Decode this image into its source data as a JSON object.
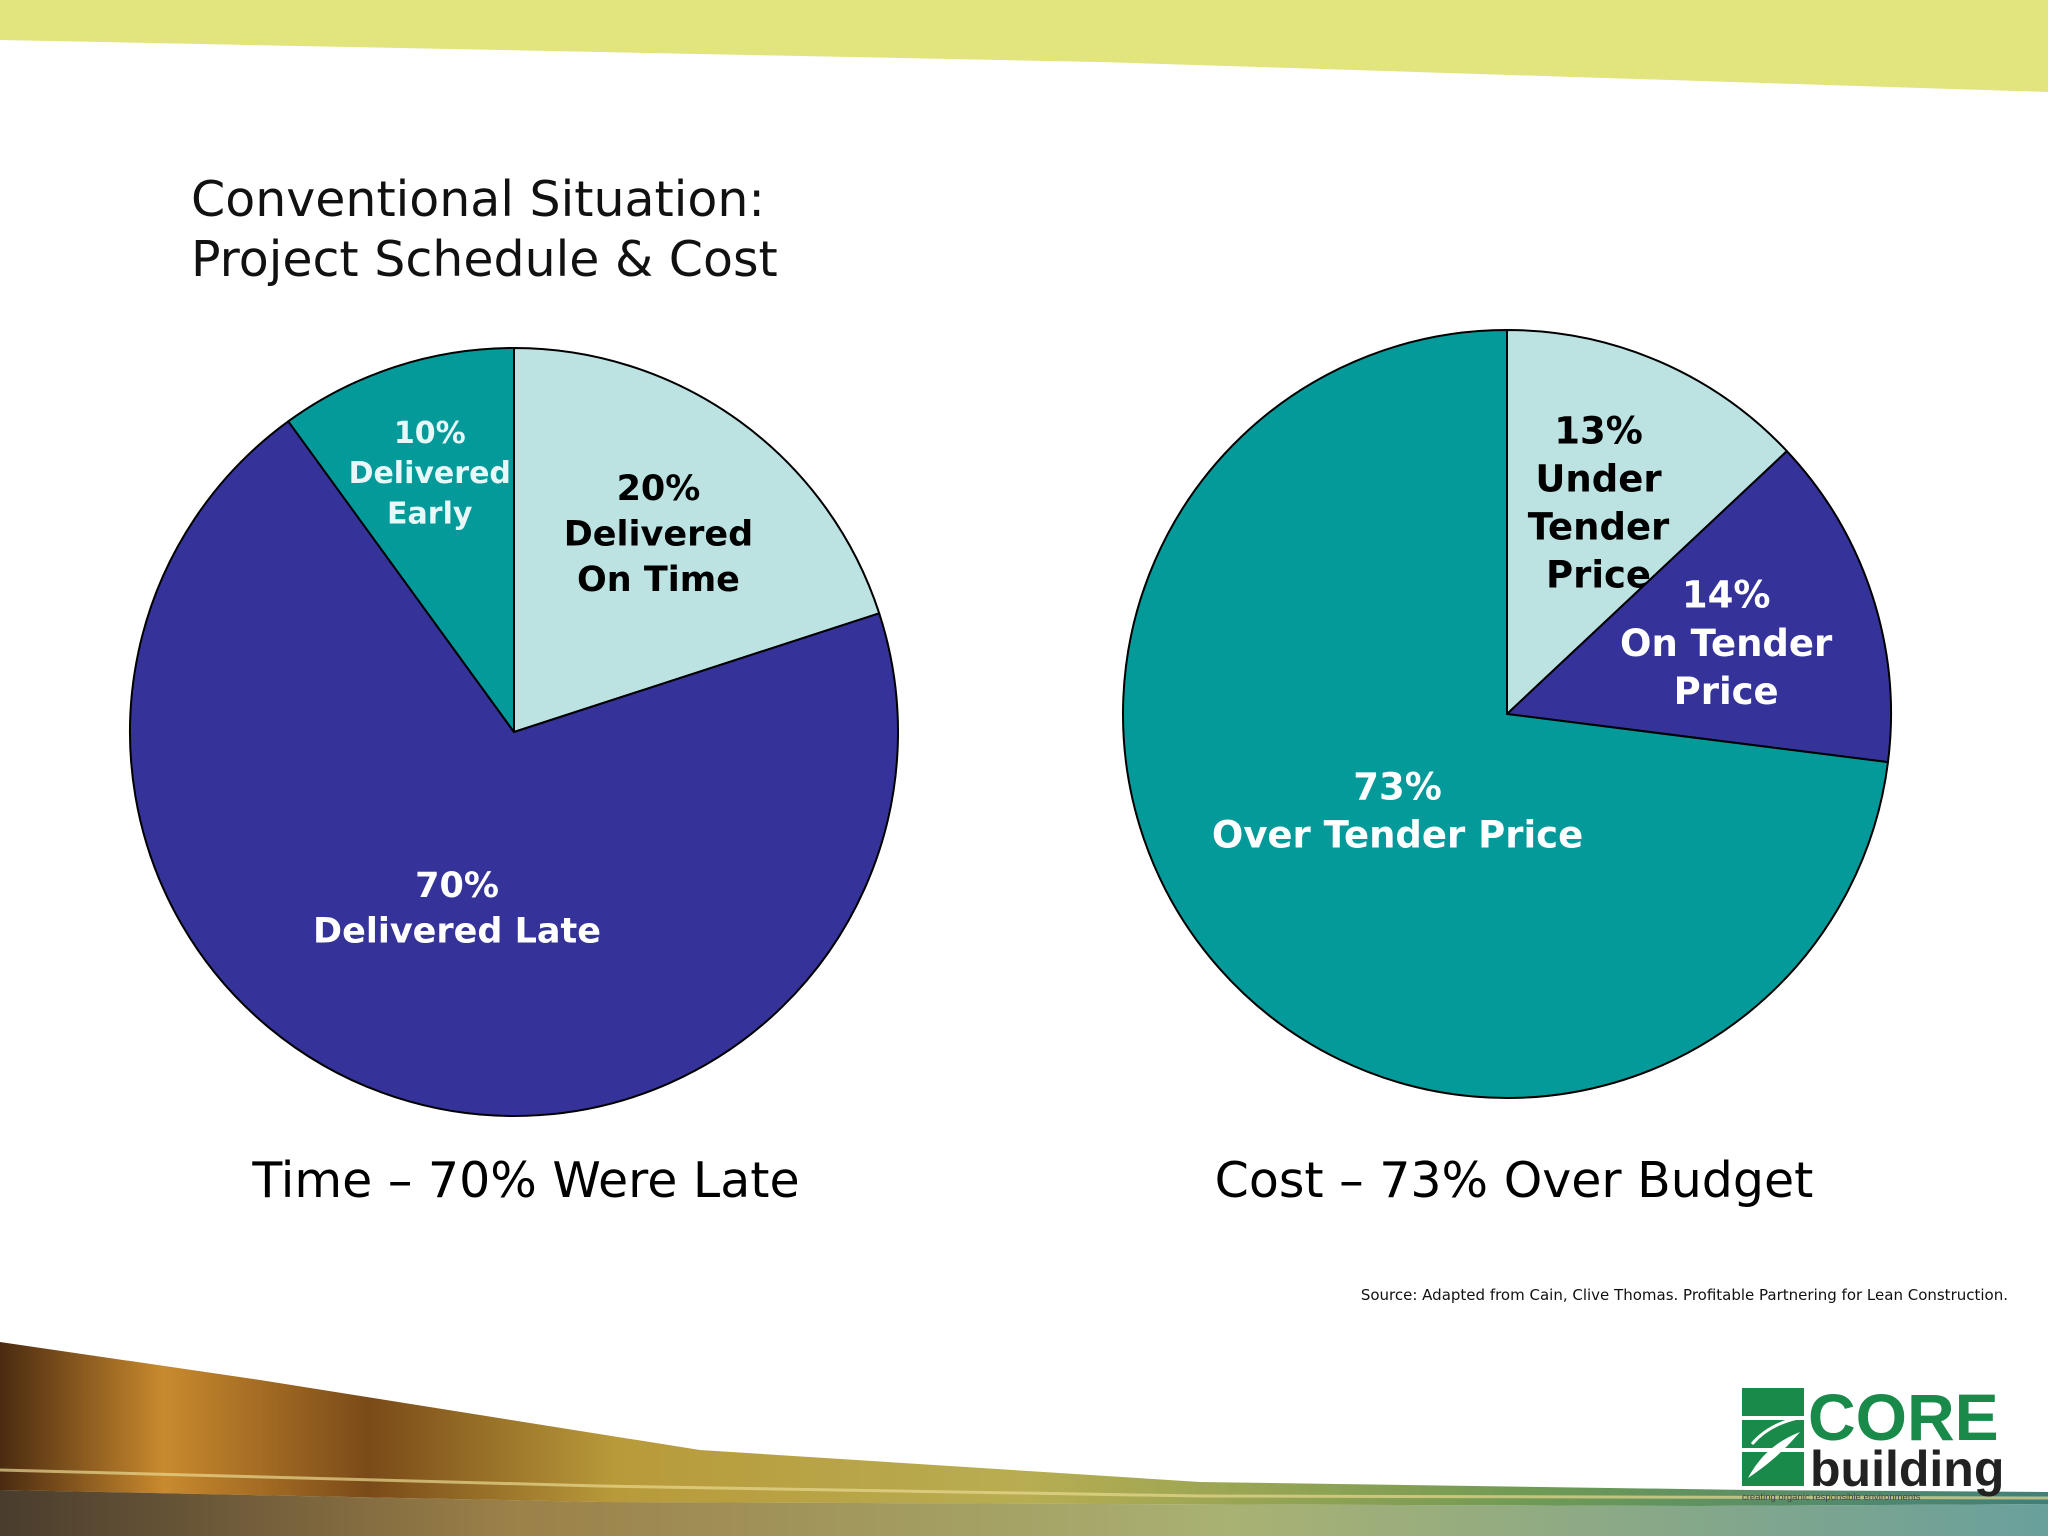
{
  "slide": {
    "title_line1": "Conventional Situation:",
    "title_line2": "Project Schedule & Cost",
    "source": "Source: Adapted from Cain, Clive Thomas.  Profitable Partnering for Lean Construction."
  },
  "colors": {
    "top_band": "#e2e47e",
    "light_teal": "#bce2e2",
    "navy": "#353399",
    "teal": "#049a9a",
    "logo_green": "#1a8a4a"
  },
  "logo": {
    "name_line1": "CORE",
    "name_line2": "building",
    "tagline": "creating organic responsible environments",
    "icon": "leaf-emblem-icon"
  },
  "chart_data": [
    {
      "type": "pie",
      "title": "",
      "caption": "Time – 70% Were Late",
      "slices": [
        {
          "value": 20,
          "pct_label": "20%",
          "label_lines": [
            "Delivered",
            "On Time"
          ],
          "color": "#bce2e2",
          "text_color": "#000000"
        },
        {
          "value": 70,
          "pct_label": "70%",
          "label_lines": [
            "Delivered Late"
          ],
          "color": "#353399",
          "text_color": "#ffffff"
        },
        {
          "value": 10,
          "pct_label": "10%",
          "label_lines": [
            "Delivered",
            "Early"
          ],
          "color": "#049a9a",
          "text_color": "#e8f8f8"
        }
      ]
    },
    {
      "type": "pie",
      "title": "",
      "caption": "Cost – 73% Over Budget",
      "slices": [
        {
          "value": 13,
          "pct_label": "13%",
          "label_lines": [
            "Under",
            "Tender",
            "Price"
          ],
          "color": "#bce2e2",
          "text_color": "#000000"
        },
        {
          "value": 14,
          "pct_label": "14%",
          "label_lines": [
            "On Tender",
            "Price"
          ],
          "color": "#353399",
          "text_color": "#ffffff"
        },
        {
          "value": 73,
          "pct_label": "73%",
          "label_lines": [
            "Over Tender Price"
          ],
          "color": "#049a9a",
          "text_color": "#ffffff"
        }
      ]
    }
  ]
}
